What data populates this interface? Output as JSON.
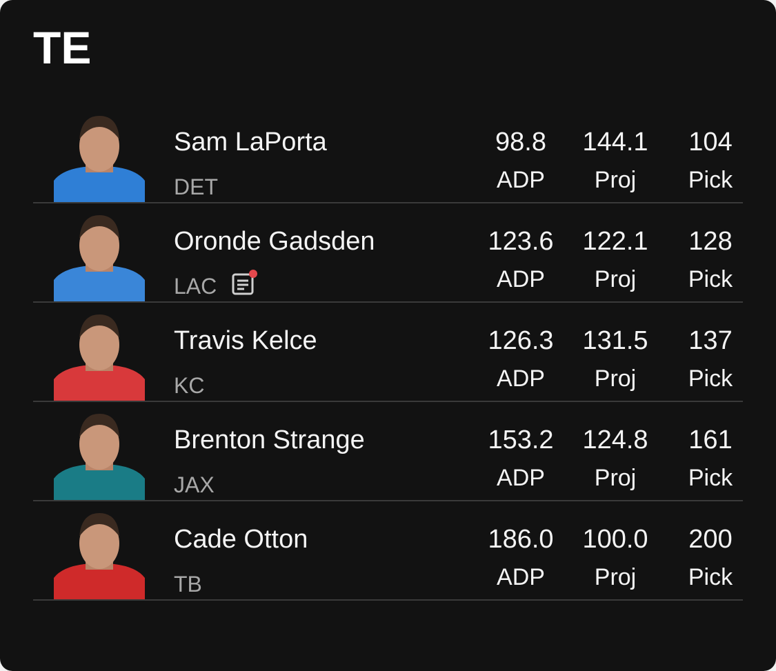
{
  "header": {
    "title": "TE"
  },
  "players": [
    {
      "name": "Sam LaPorta",
      "team": "DET",
      "stats": [
        {
          "value": "98.8",
          "label": "ADP"
        },
        {
          "value": "144.1",
          "label": "Proj"
        },
        {
          "value": "104",
          "label": "Pick"
        }
      ]
    },
    {
      "name": "Oronde Gadsden",
      "team": "LAC",
      "stats": [
        {
          "value": "123.6",
          "label": "ADP"
        },
        {
          "value": "122.1",
          "label": "Proj"
        },
        {
          "value": "128",
          "label": "Pick"
        }
      ]
    },
    {
      "name": "Travis Kelce",
      "team": "KC",
      "stats": [
        {
          "value": "126.3",
          "label": "ADP"
        },
        {
          "value": "131.5",
          "label": "Proj"
        },
        {
          "value": "137",
          "label": "Pick"
        }
      ]
    },
    {
      "name": "Brenton Strange",
      "team": "JAX",
      "stats": [
        {
          "value": "153.2",
          "label": "ADP"
        },
        {
          "value": "124.8",
          "label": "Proj"
        },
        {
          "value": "161",
          "label": "Pick"
        }
      ]
    },
    {
      "name": "Cade Otton",
      "team": "TB",
      "stats": [
        {
          "value": "186.0",
          "label": "ADP"
        },
        {
          "value": "100.0",
          "label": "Proj"
        },
        {
          "value": "200",
          "label": "Pick"
        }
      ]
    }
  ]
}
